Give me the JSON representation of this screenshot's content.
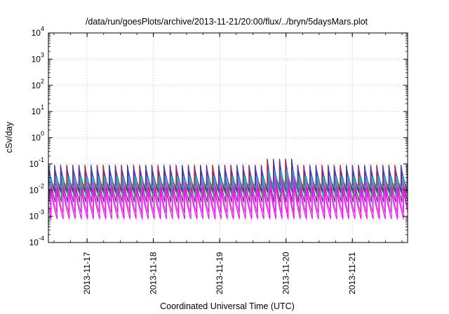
{
  "chart_data": {
    "type": "line",
    "title": "/data/run/goesPlots/archive/2013-11-21/20:00/flux/../bryn/5daysMars.plot",
    "xlabel": "Coordinated Universal Time (UTC)",
    "ylabel": "cSv/day",
    "yscale": "log",
    "ylim": [
      0.0001,
      10000
    ],
    "ytick_labels": [
      {
        "base": "10",
        "exp": "-4"
      },
      {
        "base": "10",
        "exp": "-3"
      },
      {
        "base": "10",
        "exp": "-2"
      },
      {
        "base": "10",
        "exp": "-1"
      },
      {
        "base": "10",
        "exp": "0"
      },
      {
        "base": "10",
        "exp": "1"
      },
      {
        "base": "10",
        "exp": "2"
      },
      {
        "base": "10",
        "exp": "3"
      },
      {
        "base": "10",
        "exp": "4"
      }
    ],
    "xlim": [
      "2013-11-16 10:00",
      "2013-11-21 20:00"
    ],
    "xtick_labels": [
      "2013-11-17",
      "2013-11-18",
      "2013-11-19",
      "2013-11-20",
      "2013-11-21"
    ],
    "grid": true,
    "sawtooth_period_hours": 2.2,
    "spike_window": {
      "start": "2013-11-19 17:00",
      "end": "2013-11-20 03:00",
      "factor": 1.7
    },
    "series": [
      {
        "color": "#cc0000",
        "peak": 0.09,
        "trough": 0.009
      },
      {
        "color": "#3355dd",
        "peak": 0.08,
        "trough": 0.01
      },
      {
        "color": "#7a1a9a",
        "peak": 0.05,
        "trough": 0.0035
      },
      {
        "color": "#22bbcc",
        "peak": 0.035,
        "trough": 0.012
      },
      {
        "color": "#44aa88",
        "peak": 0.025,
        "trough": 0.006
      },
      {
        "color": "#dd33dd",
        "peak": 0.02,
        "trough": 0.0014
      },
      {
        "color": "#ee11ee",
        "peak": 0.012,
        "trough": 0.0008
      }
    ]
  }
}
